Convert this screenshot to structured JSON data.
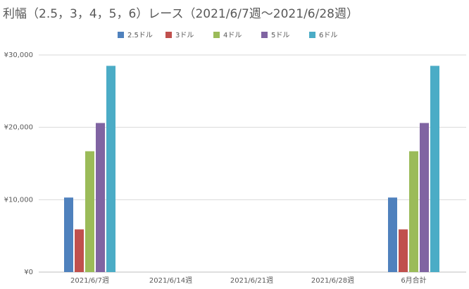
{
  "chart_data": {
    "type": "bar",
    "title": "利幅（2.5，3，4，5，6）レース（2021/6/7週〜2021/6/28週）",
    "categories": [
      "2021/6/7週",
      "2021/6/14週",
      "2021/6/21週",
      "2021/6/28週",
      "6月合計"
    ],
    "series": [
      {
        "name": "2.5ドル",
        "color": "#4f81bd",
        "values": [
          10300,
          0,
          0,
          0,
          10300
        ]
      },
      {
        "name": "3ドル",
        "color": "#c0504d",
        "values": [
          5900,
          0,
          0,
          0,
          5900
        ]
      },
      {
        "name": "4ドル",
        "color": "#9bbb59",
        "values": [
          16700,
          0,
          0,
          0,
          16700
        ]
      },
      {
        "name": "5ドル",
        "color": "#8064a2",
        "values": [
          20600,
          0,
          0,
          0,
          20600
        ]
      },
      {
        "name": "6ドル",
        "color": "#4bacc6",
        "values": [
          28500,
          0,
          0,
          0,
          28500
        ]
      }
    ],
    "ylim": [
      0,
      30000
    ],
    "yticks": [
      {
        "value": 0,
        "label": "¥0"
      },
      {
        "value": 10000,
        "label": "¥10,000"
      },
      {
        "value": 20000,
        "label": "¥20,000"
      },
      {
        "value": 30000,
        "label": "¥30,000"
      }
    ],
    "grid": true,
    "legend": "top"
  }
}
